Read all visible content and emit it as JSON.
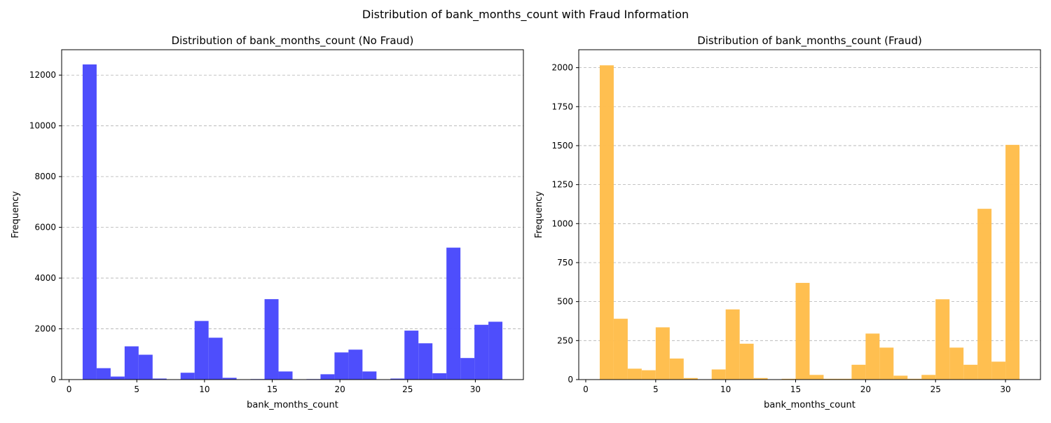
{
  "figure": {
    "suptitle": "Distribution of bank_months_count with Fraud Information"
  },
  "chart_data": [
    {
      "type": "bar",
      "title": "Distribution of bank_months_count (No Fraud)",
      "xlabel": "bank_months_count",
      "ylabel": "Frequency",
      "color": "#4a4afc",
      "xlim": [
        -0.55,
        33.55
      ],
      "ylim": [
        0,
        13000
      ],
      "xticks": [
        0,
        5,
        10,
        15,
        20,
        25,
        30
      ],
      "yticks": [
        0,
        2000,
        4000,
        6000,
        8000,
        10000,
        12000
      ],
      "grid": "y-dashed",
      "bin_edges": [
        1,
        2.0333,
        3.0667,
        4.1,
        5.1333,
        6.1667,
        7.2,
        8.2333,
        9.2667,
        10.3,
        11.3333,
        12.3667,
        13.4,
        14.4333,
        15.4667,
        16.5,
        17.5333,
        18.5667,
        19.6,
        20.6333,
        21.6667,
        22.7,
        23.7333,
        24.7667,
        25.8,
        26.8333,
        27.8667,
        28.9,
        29.9333,
        30.9667,
        32
      ],
      "values": [
        12420,
        450,
        120,
        1310,
        980,
        40,
        0,
        270,
        2310,
        1650,
        70,
        0,
        20,
        3170,
        320,
        0,
        20,
        210,
        1070,
        1180,
        320,
        10,
        40,
        1930,
        1430,
        250,
        5200,
        850,
        2160,
        2280
      ]
    },
    {
      "type": "bar",
      "title": "Distribution of bank_months_count (Fraud)",
      "xlabel": "bank_months_count",
      "ylabel": "Frequency",
      "color": "#ffbe4d",
      "xlim": [
        -0.5,
        32.5
      ],
      "ylim": [
        0,
        2115
      ],
      "xticks": [
        0,
        5,
        10,
        15,
        20,
        25,
        30
      ],
      "yticks": [
        0,
        250,
        500,
        750,
        1000,
        1250,
        1500,
        1750,
        2000
      ],
      "grid": "y-dashed",
      "bin_edges": [
        1,
        2,
        3,
        4,
        5,
        6,
        7,
        8,
        9,
        10,
        11,
        12,
        13,
        14,
        15,
        16,
        17,
        18,
        19,
        20,
        21,
        22,
        23,
        24,
        25,
        26,
        27,
        28,
        29,
        30,
        31
      ],
      "values": [
        2015,
        390,
        70,
        60,
        335,
        135,
        10,
        0,
        65,
        450,
        230,
        10,
        0,
        5,
        620,
        30,
        5,
        5,
        95,
        295,
        205,
        25,
        5,
        30,
        515,
        205,
        95,
        1095,
        115,
        1505
      ]
    }
  ]
}
